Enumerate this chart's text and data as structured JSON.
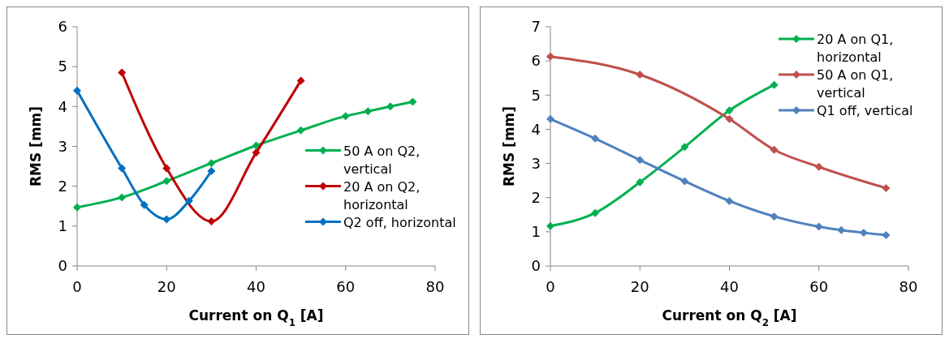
{
  "chart_data": [
    {
      "type": "line",
      "xlabel": "Current on Q$_{1}$ [A]",
      "ylabel": "RMS [mm]",
      "xlim": [
        0,
        80
      ],
      "xticks": [
        0,
        20,
        40,
        60,
        80
      ],
      "ylim": [
        0,
        6
      ],
      "yticks": [
        0,
        1,
        2,
        3,
        4,
        5,
        6
      ],
      "marker": "diamond",
      "legend": "right",
      "series": [
        {
          "name": "50 A on Q2, vertical",
          "color": "#00b050",
          "x": [
            0,
            10,
            20,
            30,
            40,
            50,
            60,
            65,
            70,
            75
          ],
          "values": [
            1.47,
            1.72,
            2.13,
            2.58,
            3.02,
            3.4,
            3.76,
            3.88,
            4.0,
            4.12
          ]
        },
        {
          "name": "20 A on Q2, horizontal",
          "color": "#c00000",
          "x": [
            10,
            20,
            30,
            40,
            50
          ],
          "values": [
            4.85,
            2.45,
            1.12,
            2.84,
            4.65
          ]
        },
        {
          "name": "Q2 off, horizontal",
          "color": "#0070c0",
          "x": [
            0,
            10,
            15,
            20,
            25,
            30
          ],
          "values": [
            4.4,
            2.45,
            1.53,
            1.17,
            1.63,
            2.38
          ]
        }
      ]
    },
    {
      "type": "line",
      "xlabel": "Current on Q$_{2}$ [A]",
      "ylabel": "RMS [mm]",
      "xlim": [
        0,
        80
      ],
      "xticks": [
        0,
        20,
        40,
        60,
        80
      ],
      "ylim": [
        0,
        7
      ],
      "yticks": [
        0,
        1,
        2,
        3,
        4,
        5,
        6,
        7
      ],
      "marker": "diamond",
      "legend": "top right",
      "series": [
        {
          "name": "20 A on Q1, horizontal",
          "color": "#00b050",
          "x": [
            0,
            10,
            20,
            30,
            40,
            50
          ],
          "values": [
            1.17,
            1.55,
            2.45,
            3.48,
            4.55,
            5.3
          ]
        },
        {
          "name": "50 A on Q1, vertical",
          "color": "#c0504d",
          "x": [
            0,
            20,
            40,
            50,
            60,
            75
          ],
          "values": [
            6.13,
            5.6,
            4.3,
            3.4,
            2.9,
            2.28
          ]
        },
        {
          "name": "Q1 off, vertical",
          "color": "#4f81bd",
          "x": [
            0,
            10,
            20,
            30,
            40,
            50,
            60,
            65,
            70,
            75
          ],
          "values": [
            4.3,
            3.73,
            3.1,
            2.48,
            1.9,
            1.45,
            1.15,
            1.05,
            0.97,
            0.9
          ]
        }
      ]
    }
  ]
}
